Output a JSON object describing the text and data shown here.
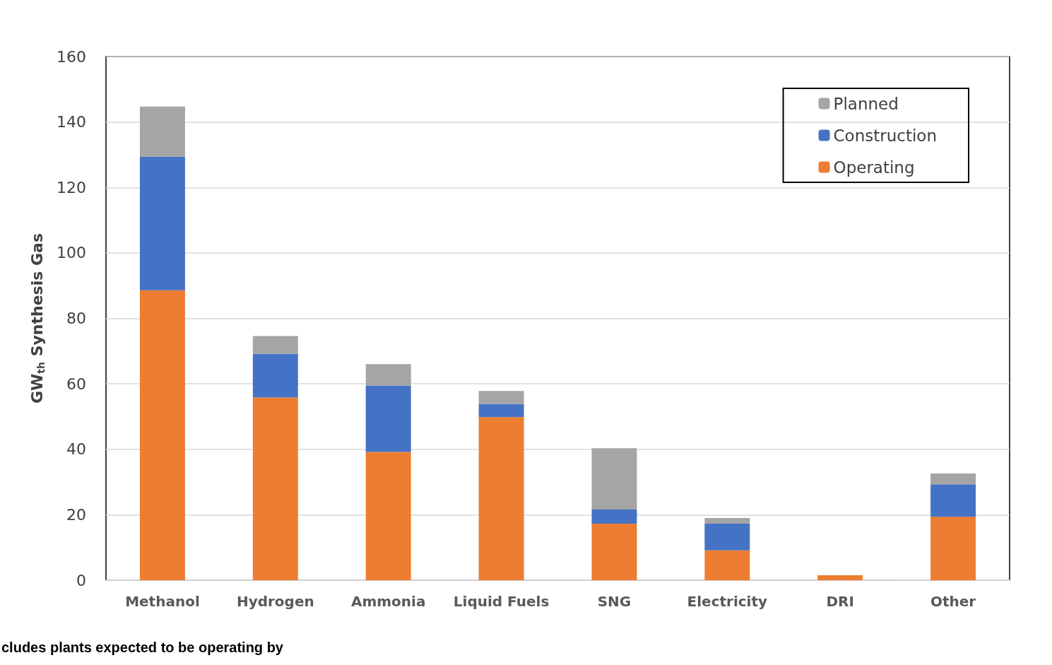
{
  "chart_data": {
    "type": "bar",
    "stacked": true,
    "ylabel": "GW$_{th}$ Synthesis Gas",
    "categories": [
      "Methanol",
      "Hydrogen",
      "Ammonia",
      "Liquid Fuels",
      "SNG",
      "Electricity",
      "DRI",
      "Other"
    ],
    "series": [
      {
        "name": "Operating",
        "color": "#ed7d31",
        "values": [
          88.6,
          55.8,
          39.2,
          49.8,
          17.3,
          9.1,
          1.5,
          19.4
        ]
      },
      {
        "name": "Construction",
        "color": "#4472c4",
        "values": [
          40.8,
          13.4,
          20.3,
          4.1,
          4.3,
          8.2,
          0,
          9.9
        ]
      },
      {
        "name": "Planned",
        "color": "#a5a5a5",
        "values": [
          15.3,
          5.4,
          6.5,
          3.9,
          18.7,
          1.7,
          0,
          3.3
        ]
      }
    ],
    "ylim": [
      0,
      160
    ],
    "yticks": [
      0,
      20,
      40,
      60,
      80,
      100,
      120,
      140,
      160
    ],
    "grid": "y",
    "legend": "top right",
    "annotations": [
      "cludes plants expected to be operating by"
    ]
  }
}
